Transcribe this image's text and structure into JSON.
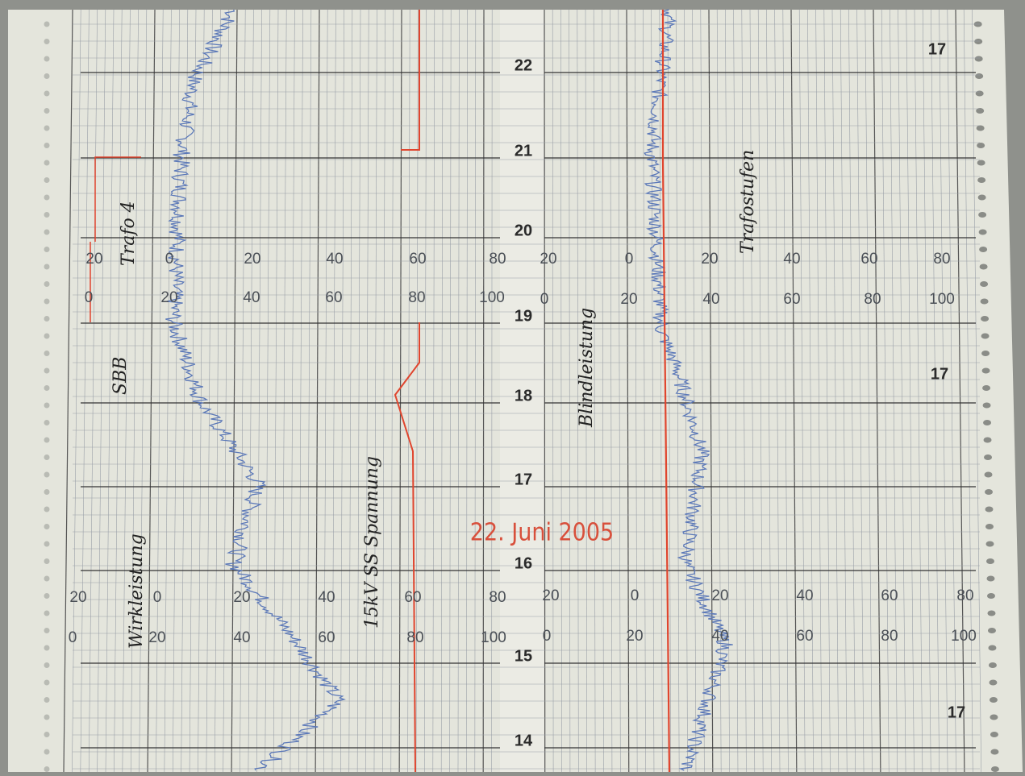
{
  "hour_labels": [
    "22",
    "21",
    "20",
    "19",
    "18",
    "17",
    "16",
    "15",
    "14"
  ],
  "scales": {
    "upper_left_a": [
      "20",
      "0",
      "20",
      "40",
      "60",
      "80"
    ],
    "upper_left_b": [
      "0",
      "20",
      "40",
      "60",
      "80",
      "100"
    ],
    "upper_right_a": [
      "20",
      "0",
      "20",
      "40",
      "60",
      "80"
    ],
    "upper_right_b": [
      "0",
      "20",
      "40",
      "60",
      "80",
      "100"
    ],
    "lower_left_a": [
      "20",
      "0",
      "20",
      "40",
      "60",
      "80"
    ],
    "lower_left_b": [
      "0",
      "20",
      "40",
      "60",
      "80",
      "100"
    ],
    "lower_right_a": [
      "20",
      "0",
      "20",
      "40",
      "60",
      "80"
    ],
    "lower_right_b": [
      "0",
      "20",
      "40",
      "60",
      "80",
      "100"
    ]
  },
  "page_numbers": [
    "17",
    "17",
    "17"
  ],
  "stamp": "22. Juni 2005",
  "annotations": [
    "Trafo 4",
    "SBB",
    "Wirkleistung",
    "15kV SS Spannung",
    "Blindleistung",
    "Trafostufen"
  ]
}
